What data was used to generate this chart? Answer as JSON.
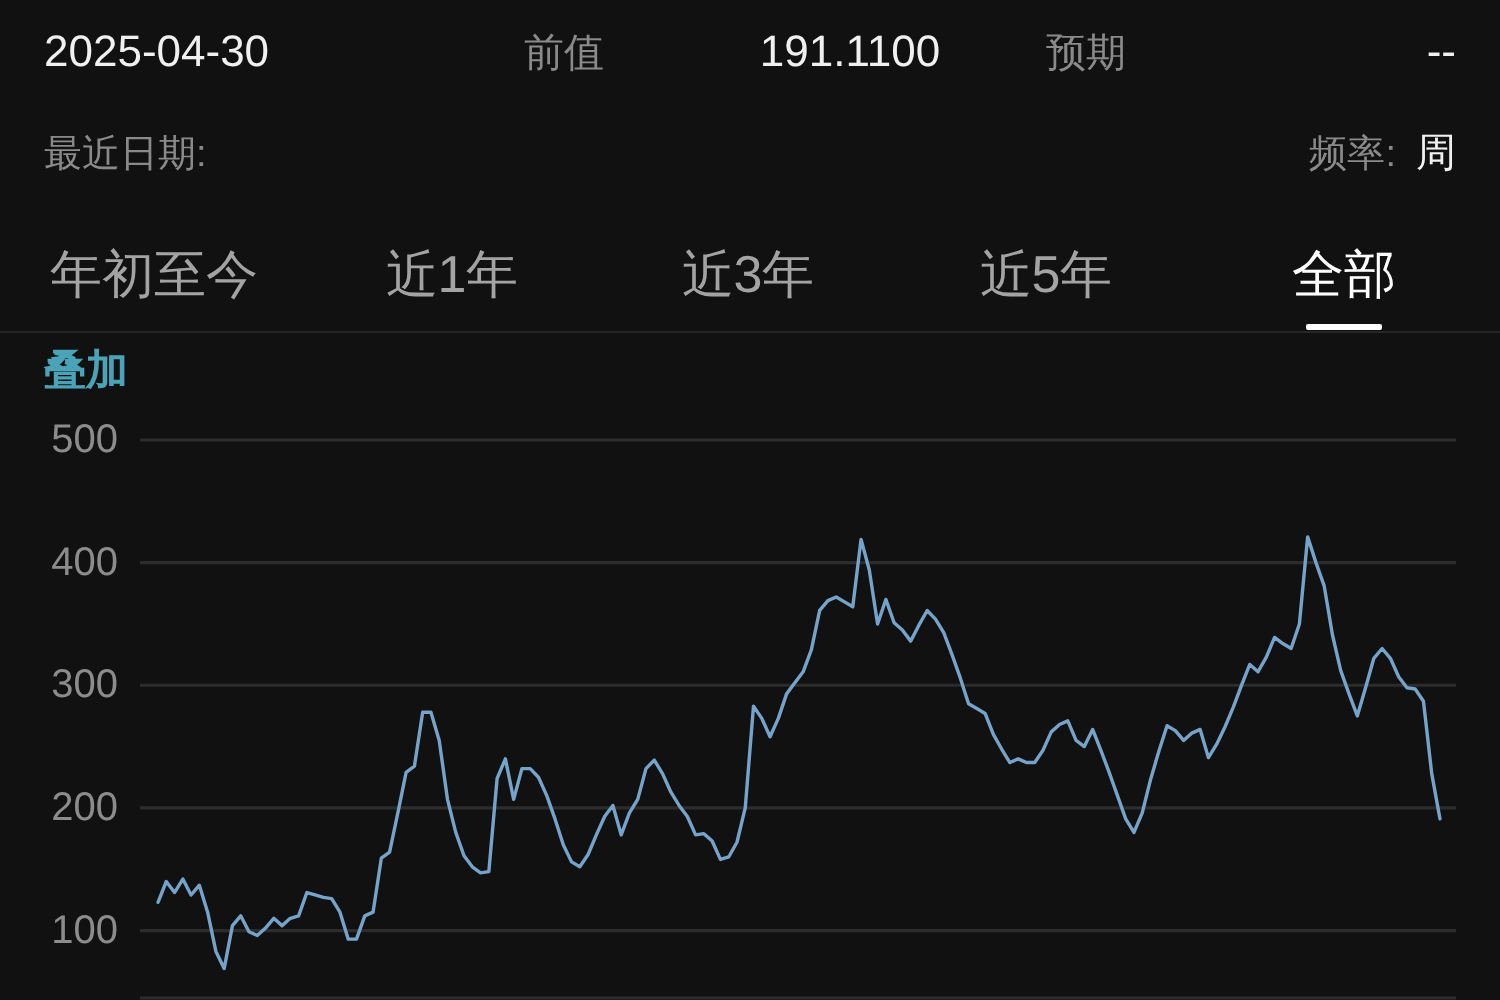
{
  "chart_data": {
    "type": "line",
    "annotations": [
      "2025-04-30",
      "前值",
      "191.1100",
      "预期",
      "--",
      "最近日期:",
      "频率:",
      "周",
      "年初至今",
      "近1年",
      "近3年",
      "近5年",
      "全部",
      "叠加"
    ],
    "categories": [
      null,
      null,
      null,
      null,
      null,
      null,
      null,
      null,
      null,
      null,
      null,
      null,
      null,
      null,
      null,
      null,
      null,
      null,
      null,
      null,
      null,
      null,
      null,
      null,
      null,
      null,
      null,
      null,
      null,
      null,
      null,
      null,
      null,
      null,
      null,
      null,
      null,
      null,
      null,
      null,
      null,
      null,
      null,
      null,
      null,
      null,
      null,
      null,
      null,
      null,
      null,
      null,
      null,
      null,
      null,
      null,
      null,
      null,
      null,
      null,
      null,
      null,
      null,
      null,
      null,
      null,
      null,
      null,
      null,
      null,
      null,
      null,
      null,
      null,
      null,
      null,
      null,
      null,
      null,
      null,
      null,
      null,
      null,
      null,
      null,
      null,
      null,
      null,
      null,
      null,
      null,
      null,
      null,
      null,
      null,
      null,
      null,
      null,
      null,
      null,
      null,
      null,
      null,
      null,
      null,
      null,
      null,
      null,
      null,
      null,
      null,
      null,
      null,
      null,
      null,
      null,
      null,
      null,
      null,
      null,
      null,
      null,
      null,
      null,
      null,
      null,
      null,
      null,
      null,
      null,
      null,
      null,
      null,
      null,
      null,
      null,
      null,
      null,
      null,
      null,
      null,
      null,
      null,
      null,
      null,
      null,
      null,
      null,
      null,
      null,
      null,
      null,
      null,
      null,
      null,
      null
    ],
    "series": [
      {
        "color": "#76a3c9",
        "values": [
          123,
          140,
          131,
          142,
          129,
          137,
          115,
          83,
          69,
          104,
          112,
          99,
          96,
          102,
          110,
          104,
          110,
          112,
          131,
          129,
          127,
          126,
          115,
          93,
          93,
          112,
          115,
          159,
          164,
          196,
          229,
          234,
          278,
          278,
          255,
          207,
          180,
          161,
          152,
          147,
          148,
          224,
          240,
          207,
          232,
          232,
          225,
          210,
          191,
          170,
          156,
          152,
          162,
          178,
          193,
          202,
          178,
          196,
          207,
          232,
          239,
          228,
          213,
          202,
          193,
          178,
          179,
          173,
          158,
          160,
          172,
          200,
          283,
          273,
          258,
          273,
          293,
          302,
          311,
          329,
          361,
          369,
          372,
          368,
          364,
          419,
          394,
          350,
          370,
          351,
          345,
          336,
          349,
          361,
          354,
          343,
          325,
          306,
          285,
          281,
          277,
          260,
          248,
          237,
          240,
          237,
          237,
          247,
          262,
          268,
          271,
          255,
          250,
          264,
          247,
          229,
          210,
          191,
          180,
          196,
          223,
          246,
          267,
          263,
          255,
          261,
          264,
          241,
          252,
          266,
          282,
          300,
          317,
          311,
          323,
          339,
          334,
          330,
          350,
          421,
          400,
          381,
          341,
          312,
          293,
          275,
          298,
          322,
          330,
          322,
          307,
          298,
          297,
          287,
          228,
          191
        ]
      }
    ],
    "ylim": [
      45,
      500
    ],
    "yticks": [
      100,
      200,
      300,
      400,
      500
    ],
    "grid": "y",
    "tick_labels": "y",
    "marker": "none",
    "line_style": "solid"
  }
}
